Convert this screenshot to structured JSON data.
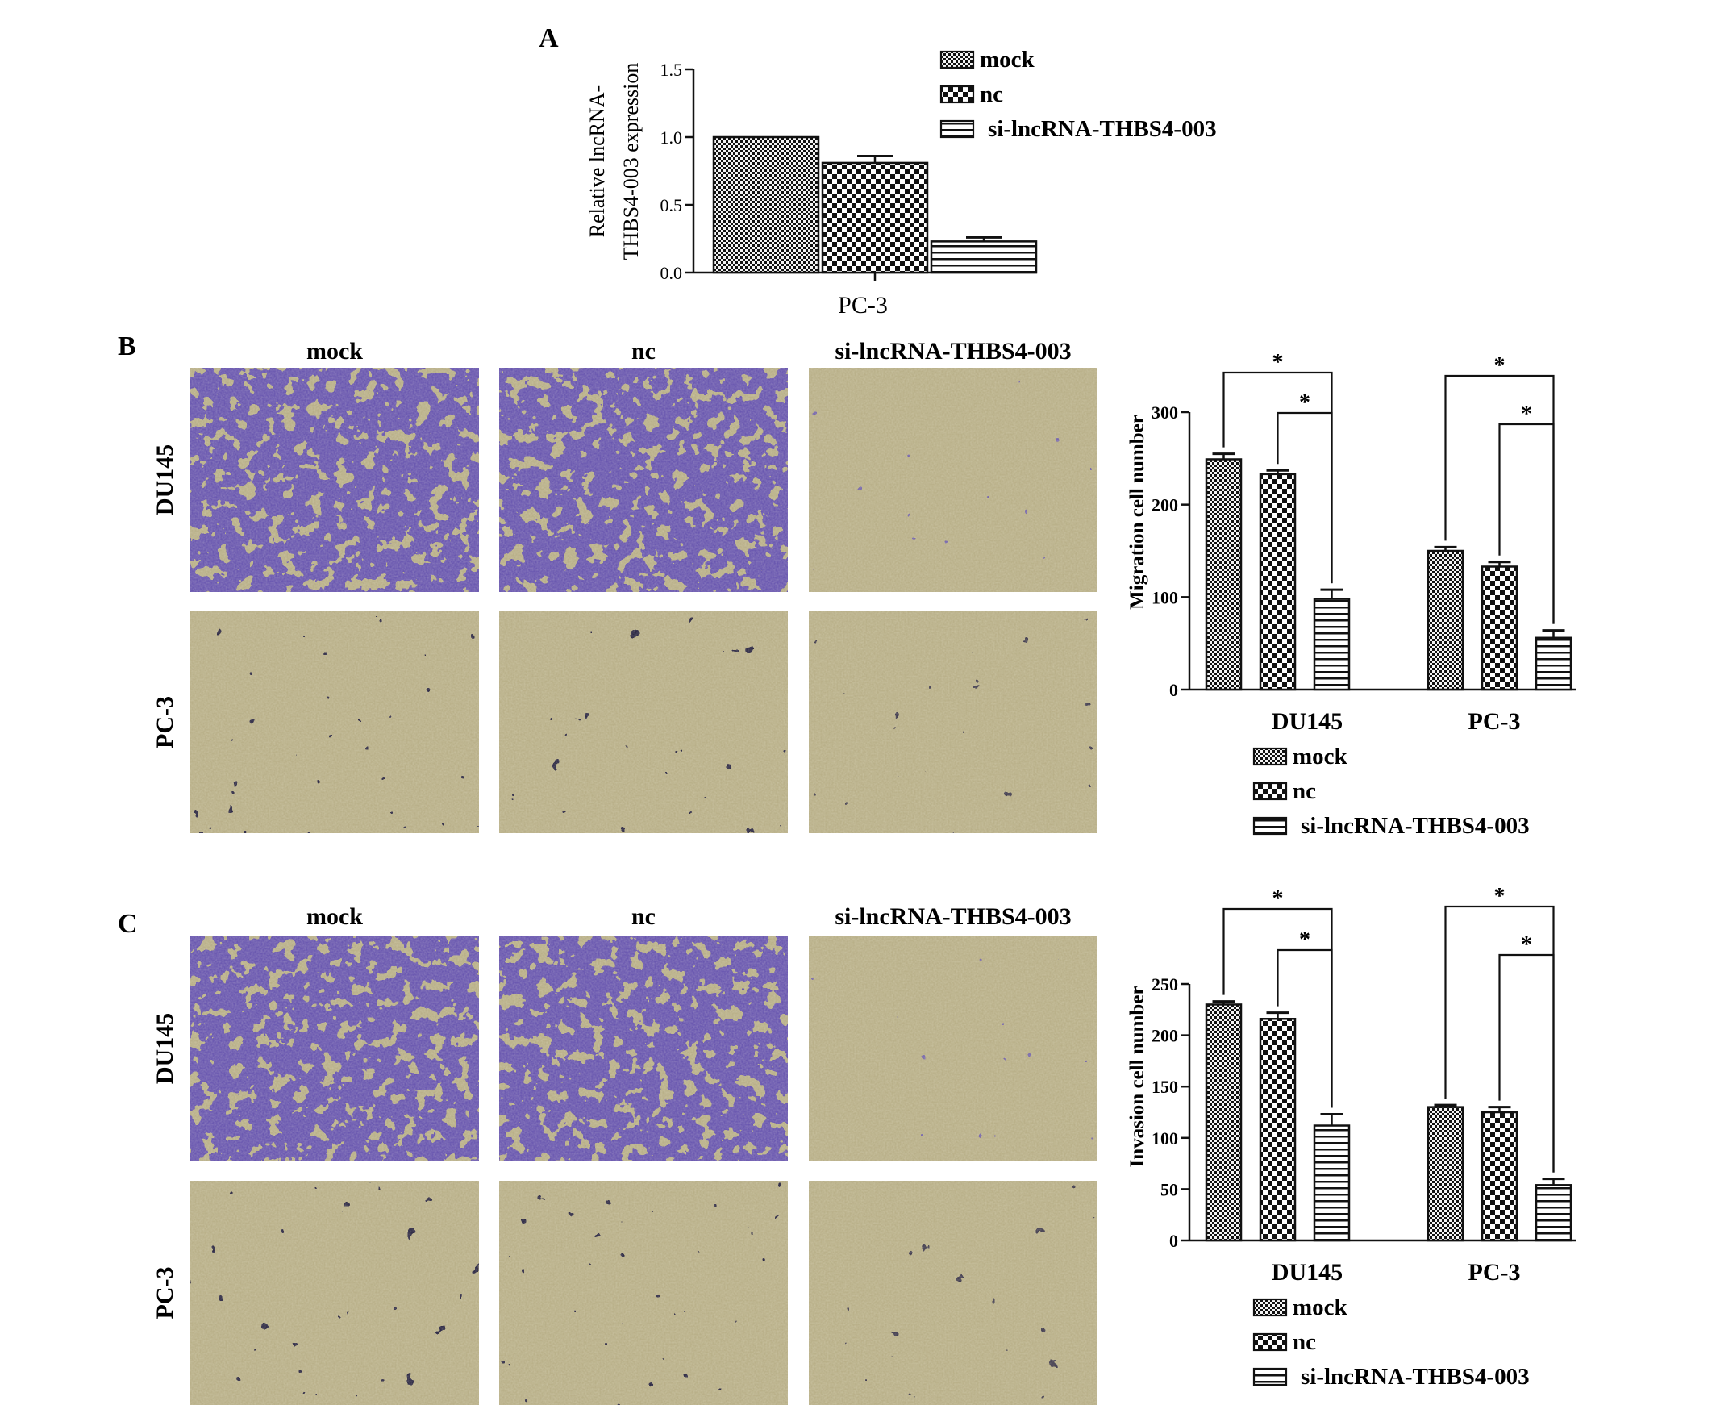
{
  "panels": {
    "a": "A",
    "b": "B",
    "c": "C"
  },
  "micro_labels": {
    "columns": [
      "mock",
      "nc",
      "si-lncRNA-THBS4-003"
    ],
    "rows": [
      "DU145",
      "PC-3"
    ]
  },
  "colors": {
    "stain_dense": "#6a58b0",
    "stain_dark": "#2e2a45",
    "membrane_bg": "#b9b089",
    "membrane_light": "#d6cfa0"
  },
  "significance_marker": "*",
  "chart_data": [
    {
      "panel": "A",
      "type": "bar",
      "ylabel": "Relative lncRNA-THBS4-003 expression",
      "ylabel_lines": [
        "Relative lncRNA-",
        "THBS4-003 expression"
      ],
      "xlabel": "PC-3",
      "categories": [
        "PC-3"
      ],
      "ylim": [
        0,
        1.5
      ],
      "yticks": [
        "0.0",
        "0.5",
        "1.0",
        "1.5"
      ],
      "series": [
        {
          "name": "mock",
          "pattern": "fine-check",
          "values": [
            1.0
          ],
          "error": [
            0
          ]
        },
        {
          "name": "nc",
          "pattern": "coarse-check",
          "values": [
            0.81
          ],
          "error": [
            0.05
          ]
        },
        {
          "name": "si-lncRNA-THBS4-003",
          "pattern": "horizontal-lines",
          "values": [
            0.23
          ],
          "error": [
            0.03
          ]
        }
      ],
      "legend_position": "top-right"
    },
    {
      "panel": "B",
      "type": "bar",
      "ylabel": "Migration cell number",
      "categories": [
        "DU145",
        "PC-3"
      ],
      "ylim": [
        0,
        300
      ],
      "yticks": [
        "0",
        "100",
        "200",
        "300"
      ],
      "series": [
        {
          "name": "mock",
          "pattern": "fine-check",
          "values": [
            249,
            150
          ],
          "error": [
            6,
            4
          ]
        },
        {
          "name": "nc",
          "pattern": "coarse-check",
          "values": [
            233,
            133
          ],
          "error": [
            4,
            5
          ]
        },
        {
          "name": "si-lncRNA-THBS4-003",
          "pattern": "horizontal-lines",
          "values": [
            98,
            56
          ],
          "error": [
            10,
            8
          ]
        }
      ],
      "significance": [
        {
          "group": "DU145",
          "pairs": [
            [
              "mock",
              "si-lncRNA-THBS4-003"
            ],
            [
              "nc",
              "si-lncRNA-THBS4-003"
            ]
          ],
          "label": "*"
        },
        {
          "group": "PC-3",
          "pairs": [
            [
              "mock",
              "si-lncRNA-THBS4-003"
            ],
            [
              "nc",
              "si-lncRNA-THBS4-003"
            ]
          ],
          "label": "*"
        }
      ],
      "legend_position": "bottom"
    },
    {
      "panel": "C",
      "type": "bar",
      "ylabel": "Invasion cell number",
      "categories": [
        "DU145",
        "PC-3"
      ],
      "ylim": [
        0,
        250
      ],
      "yticks": [
        "0",
        "50",
        "100",
        "150",
        "200",
        "250"
      ],
      "series": [
        {
          "name": "mock",
          "pattern": "fine-check",
          "values": [
            230,
            130
          ],
          "error": [
            3,
            2
          ]
        },
        {
          "name": "nc",
          "pattern": "coarse-check",
          "values": [
            216,
            125
          ],
          "error": [
            6,
            5
          ]
        },
        {
          "name": "si-lncRNA-THBS4-003",
          "pattern": "horizontal-lines",
          "values": [
            112,
            54
          ],
          "error": [
            11,
            6
          ]
        }
      ],
      "significance": [
        {
          "group": "DU145",
          "pairs": [
            [
              "mock",
              "si-lncRNA-THBS4-003"
            ],
            [
              "nc",
              "si-lncRNA-THBS4-003"
            ]
          ],
          "label": "*"
        },
        {
          "group": "PC-3",
          "pairs": [
            [
              "mock",
              "si-lncRNA-THBS4-003"
            ],
            [
              "nc",
              "si-lncRNA-THBS4-003"
            ]
          ],
          "label": "*"
        }
      ],
      "legend_position": "bottom"
    }
  ]
}
